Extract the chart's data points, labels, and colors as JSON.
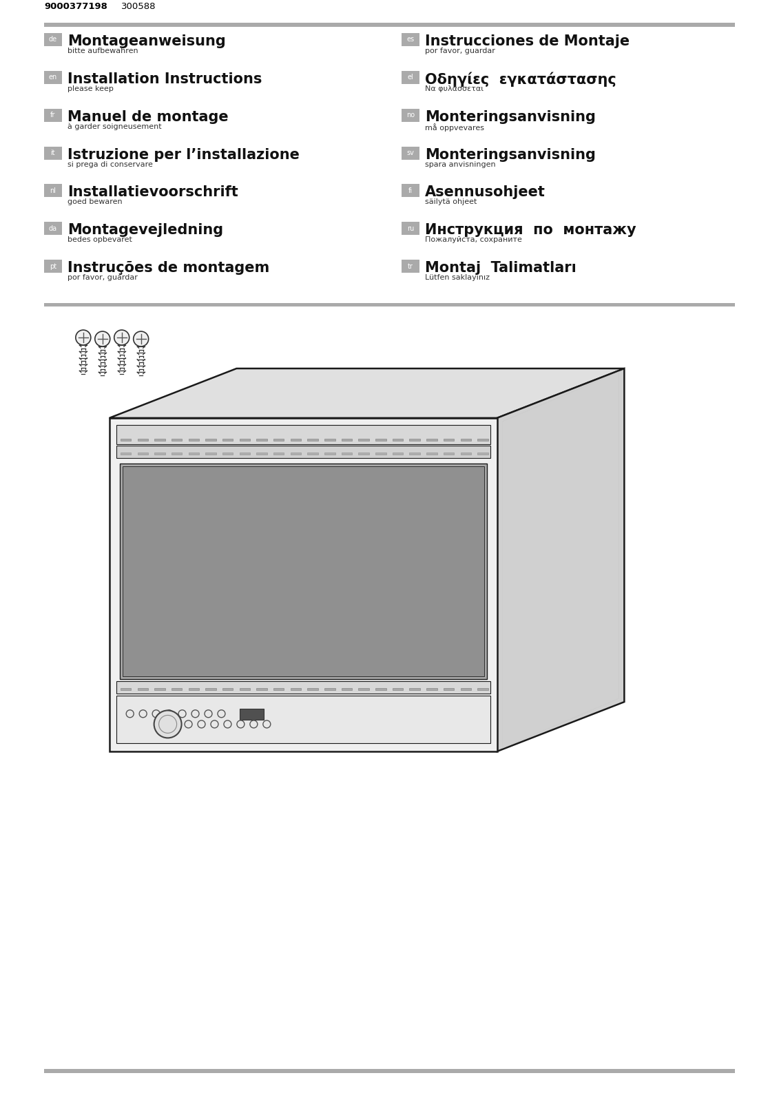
{
  "bg_color": "#ffffff",
  "header_bar_color": "#aaaaaa",
  "header_number": "9000377198",
  "header_code": "300588",
  "footer_bar_color": "#aaaaaa",
  "lang_badge_color": "#aaaaaa",
  "lang_badge_text_color": "#ffffff",
  "entries_left": [
    {
      "lang": "de",
      "title": "Montageanweisung",
      "subtitle": "bitte aufbewahren"
    },
    {
      "lang": "en",
      "title": "Installation Instructions",
      "subtitle": "please keep"
    },
    {
      "lang": "fr",
      "title": "Manuel de montage",
      "subtitle": "à garder soigneusement"
    },
    {
      "lang": "it",
      "title": "Istruzione per l’installazione",
      "subtitle": "si prega di conservare"
    },
    {
      "lang": "nl",
      "title": "Installatievoorschrift",
      "subtitle": "goed bewaren"
    },
    {
      "lang": "da",
      "title": "Montagevejledning",
      "subtitle": "bedes opbevaret"
    },
    {
      "lang": "pt",
      "title": "Instruções de montagem",
      "subtitle": "por favor, guardar"
    }
  ],
  "entries_right": [
    {
      "lang": "es",
      "title": "Instrucciones de Montaje",
      "subtitle": "por favor, guardar",
      "bold": false
    },
    {
      "lang": "el",
      "title": "Οδηγίες  εγκατάστασης",
      "subtitle": "Να φυλάσσεται",
      "bold": true
    },
    {
      "lang": "no",
      "title": "Monteringsanvisning",
      "subtitle": "må oppvevares",
      "bold": false
    },
    {
      "lang": "sv",
      "title": "Monteringsanvisning",
      "subtitle": "spara anvisningen",
      "bold": false
    },
    {
      "lang": "fi",
      "title": "Asennusohjeet",
      "subtitle": "säilytä ohjeet",
      "bold": false
    },
    {
      "lang": "ru",
      "title": "Инструкция  по  монтажу",
      "subtitle": "Пожалуйста, сохраните",
      "bold": true
    },
    {
      "lang": "tr",
      "title": "Montaj  Talimatları",
      "subtitle": "Lütfen saklayınız",
      "bold": true
    }
  ],
  "oven_side_color": "#d0d0d0",
  "oven_top_color": "#e0e0e0",
  "oven_front_color": "#f0f0f0",
  "oven_glass_color": "#a8a8a8",
  "oven_panel_color": "#c8c8c8",
  "oven_display_color": "#505050",
  "oven_edge_color": "#1a1a1a"
}
